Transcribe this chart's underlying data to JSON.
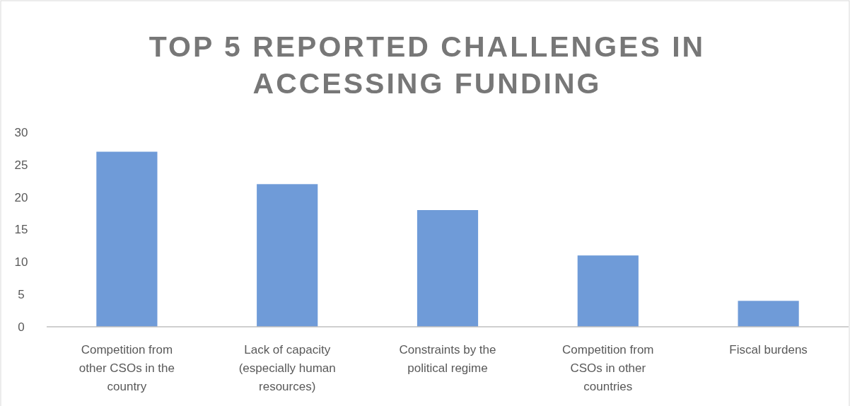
{
  "chart_data": {
    "type": "bar",
    "title": "TOP 5 REPORTED CHALLENGES IN ACCESSING FUNDING",
    "categories": [
      "Competition from other CSOs in the country",
      "Lack of capacity (especially human resources)",
      "Constraints by the political regime",
      "Competition from CSOs in other countries",
      "Fiscal burdens"
    ],
    "values": [
      27,
      22,
      18,
      11,
      4
    ],
    "color": "#6f9bd8",
    "ylim": [
      0,
      30
    ],
    "yticks": [
      0,
      5,
      10,
      15,
      20,
      25,
      30
    ],
    "grid": false
  }
}
